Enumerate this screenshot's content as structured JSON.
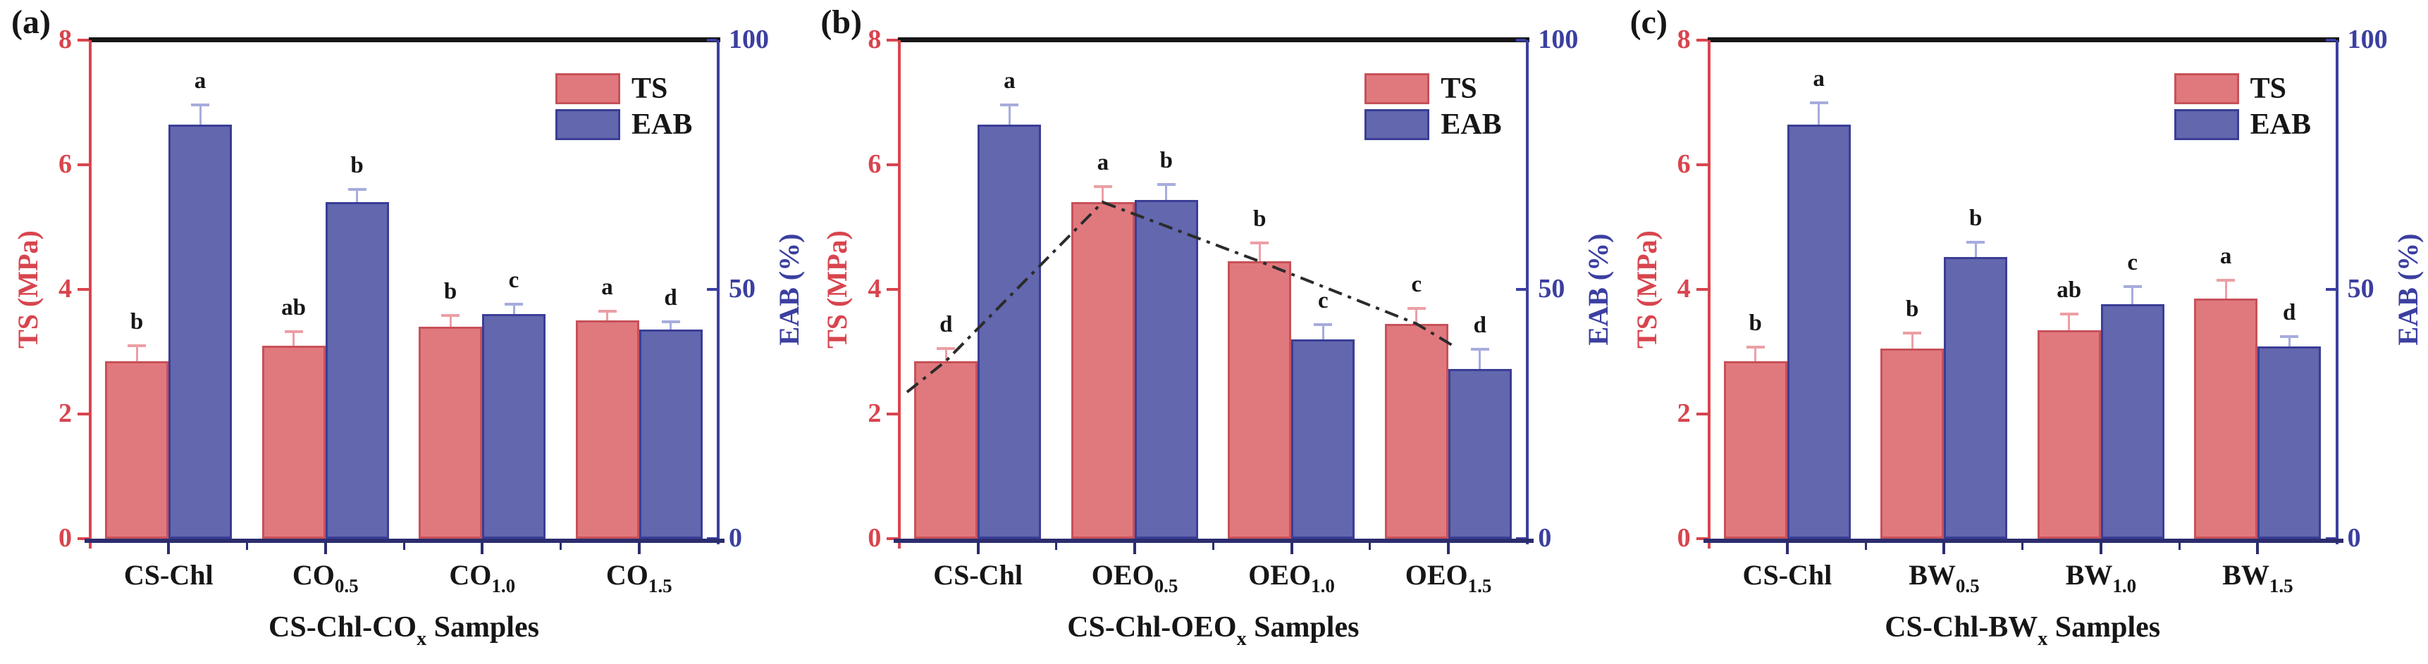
{
  "figure_title": "",
  "colors": {
    "ts_fill": "#E0797E",
    "ts_edge": "#C75159",
    "eab_fill": "#6267AE",
    "eab_edge": "#3A3E96",
    "left_axis": "#D8454E",
    "right_axis": "#3B3FA0",
    "bottom_axis": "#2B2D6E",
    "top_axis": "#161616",
    "ts_error": "#EC9FA5",
    "eab_error": "#A7ACDC",
    "letter": "#161616",
    "trend": "#2B2B2B"
  },
  "chart_data": [
    {
      "type": "bar",
      "panel_label": "(a)",
      "title": "",
      "categories": [
        {
          "main": "CS-Chl",
          "sub": ""
        },
        {
          "main": "CO",
          "sub": "0.5"
        },
        {
          "main": "CO",
          "sub": "1.0"
        },
        {
          "main": "CO",
          "sub": "1.5"
        }
      ],
      "xlabel_parts": [
        {
          "text": "CS-Chl-CO",
          "sub": false
        },
        {
          "text": "x",
          "sub": true
        },
        {
          "text": " Samples",
          "sub": false
        }
      ],
      "left_axis": {
        "label": "TS (MPa)",
        "ticks": [
          0,
          2,
          4,
          6,
          8
        ],
        "range": [
          0,
          8
        ]
      },
      "right_axis": {
        "label": "EAB (%)",
        "ticks": [
          0,
          50,
          100
        ],
        "range": [
          0,
          100
        ]
      },
      "legend": [
        {
          "label": "TS",
          "color_key": "ts"
        },
        {
          "label": "EAB",
          "color_key": "eab"
        }
      ],
      "series": [
        {
          "name": "TS",
          "axis": "left",
          "values": [
            2.85,
            3.1,
            3.4,
            3.5
          ],
          "errors": [
            0.25,
            0.22,
            0.18,
            0.15
          ],
          "letters": [
            "b",
            "ab",
            "b",
            "a"
          ]
        },
        {
          "name": "EAB",
          "axis": "right",
          "values": [
            83,
            67.5,
            45,
            42
          ],
          "errors": [
            4,
            2.5,
            2,
            1.5
          ],
          "letters": [
            "a",
            "b",
            "c",
            "d"
          ]
        }
      ],
      "trend_line": false,
      "grid": false,
      "legend_position": "top-right"
    },
    {
      "type": "bar",
      "panel_label": "(b)",
      "title": "",
      "categories": [
        {
          "main": "CS-Chl",
          "sub": ""
        },
        {
          "main": "OEO",
          "sub": "0.5"
        },
        {
          "main": "OEO",
          "sub": "1.0"
        },
        {
          "main": "OEO",
          "sub": "1.5"
        }
      ],
      "xlabel_parts": [
        {
          "text": "CS-Chl-OEO",
          "sub": false
        },
        {
          "text": "x",
          "sub": true
        },
        {
          "text": " Samples",
          "sub": false
        }
      ],
      "left_axis": {
        "label": "TS (MPa)",
        "ticks": [
          0,
          2,
          4,
          6,
          8
        ],
        "range": [
          0,
          8
        ]
      },
      "right_axis": {
        "label": "EAB (%)",
        "ticks": [
          0,
          50,
          100
        ],
        "range": [
          0,
          100
        ]
      },
      "legend": [
        {
          "label": "TS",
          "color_key": "ts"
        },
        {
          "label": "EAB",
          "color_key": "eab"
        }
      ],
      "series": [
        {
          "name": "TS",
          "axis": "left",
          "values": [
            2.85,
            5.4,
            4.45,
            3.45
          ],
          "errors": [
            0.2,
            0.25,
            0.3,
            0.25
          ],
          "letters": [
            "d",
            "a",
            "b",
            "c"
          ]
        },
        {
          "name": "EAB",
          "axis": "right",
          "values": [
            83,
            68,
            40,
            34
          ],
          "errors": [
            4,
            3,
            3,
            4
          ],
          "letters": [
            "a",
            "b",
            "c",
            "d"
          ]
        }
      ],
      "trend_line": true,
      "grid": false,
      "legend_position": "top-right"
    },
    {
      "type": "bar",
      "panel_label": "(c)",
      "title": "",
      "categories": [
        {
          "main": "CS-Chl",
          "sub": ""
        },
        {
          "main": "BW",
          "sub": "0.5"
        },
        {
          "main": "BW",
          "sub": "1.0"
        },
        {
          "main": "BW",
          "sub": "1.5"
        }
      ],
      "xlabel_parts": [
        {
          "text": "CS-Chl-BW",
          "sub": false
        },
        {
          "text": "x",
          "sub": true
        },
        {
          "text": " Samples",
          "sub": false
        }
      ],
      "left_axis": {
        "label": "TS (MPa)",
        "ticks": [
          0,
          2,
          4,
          6,
          8
        ],
        "range": [
          0,
          8
        ]
      },
      "right_axis": {
        "label": "EAB (%)",
        "ticks": [
          0,
          50,
          100
        ],
        "range": [
          0,
          100
        ]
      },
      "legend": [
        {
          "label": "TS",
          "color_key": "ts"
        },
        {
          "label": "EAB",
          "color_key": "eab"
        }
      ],
      "series": [
        {
          "name": "TS",
          "axis": "left",
          "values": [
            2.85,
            3.05,
            3.35,
            3.85
          ],
          "errors": [
            0.22,
            0.25,
            0.25,
            0.3
          ],
          "letters": [
            "b",
            "b",
            "ab",
            "a"
          ]
        },
        {
          "name": "EAB",
          "axis": "right",
          "values": [
            83,
            56.5,
            47,
            38.5
          ],
          "errors": [
            4.5,
            3,
            3.5,
            2
          ],
          "letters": [
            "a",
            "b",
            "c",
            "d"
          ]
        }
      ],
      "trend_line": false,
      "grid": false,
      "legend_position": "top-right"
    }
  ]
}
